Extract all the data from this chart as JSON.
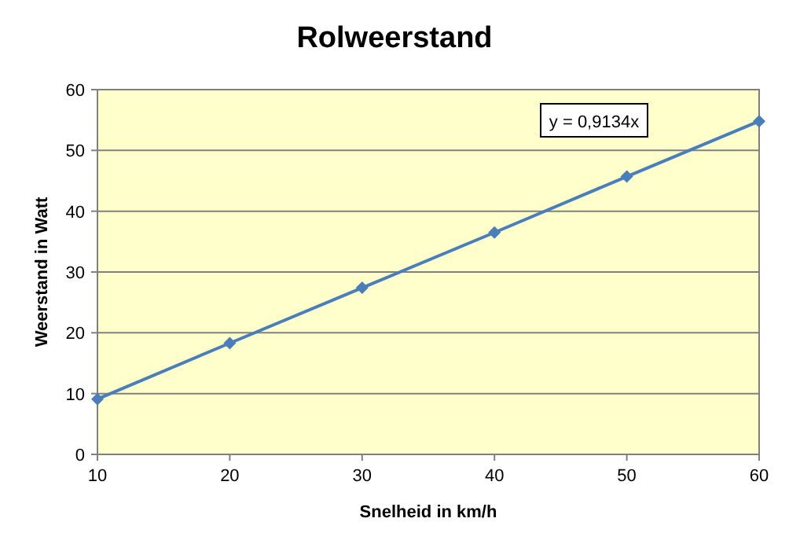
{
  "chart_data": {
    "type": "line",
    "title": "Rolweerstand",
    "xlabel": "Snelheid in km/h",
    "ylabel": "Weerstand in Watt",
    "x": [
      10,
      20,
      30,
      40,
      50,
      60
    ],
    "series": [
      {
        "color": "#4a7ebb",
        "values": [
          9.1,
          18.3,
          27.4,
          36.5,
          45.7,
          54.8
        ]
      }
    ],
    "xlim": [
      10,
      60
    ],
    "xticks": [
      10,
      20,
      30,
      40,
      50,
      60
    ],
    "ylim": [
      0,
      60
    ],
    "yticks": [
      0,
      10,
      20,
      30,
      40,
      50,
      60
    ],
    "grid": "y",
    "marker": "diamond",
    "line_style": "solid",
    "annotations": [
      "y = 0,9134x"
    ]
  }
}
